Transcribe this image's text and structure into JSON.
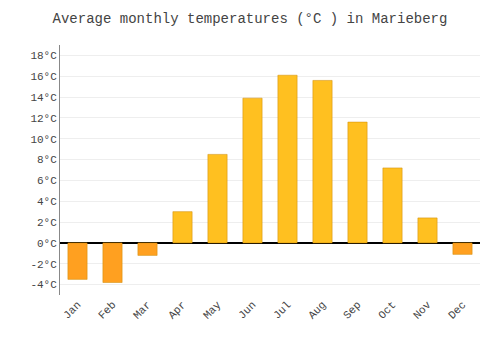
{
  "chart_data": {
    "type": "bar",
    "title": "Average monthly temperatures (°C ) in Marieberg",
    "categories": [
      "Jan",
      "Feb",
      "Mar",
      "Apr",
      "May",
      "Jun",
      "Jul",
      "Aug",
      "Sep",
      "Oct",
      "Nov",
      "Dec"
    ],
    "values": [
      -3.5,
      -3.8,
      -1.2,
      3.0,
      8.5,
      13.9,
      16.1,
      15.6,
      11.6,
      7.2,
      2.4,
      -1.1
    ],
    "colors": [
      "#FFA020",
      "#FFA020",
      "#FFA020",
      "#FFC020",
      "#FFC020",
      "#FFC020",
      "#FFC020",
      "#FFC020",
      "#FFC020",
      "#FFC020",
      "#FFC020",
      "#FFA020"
    ],
    "ylim": [
      -5,
      19
    ],
    "yticks": [
      {
        "value": -4,
        "label": "-4°C"
      },
      {
        "value": -2,
        "label": "-2°C"
      },
      {
        "value": 0,
        "label": "0°C"
      },
      {
        "value": 2,
        "label": "2°C"
      },
      {
        "value": 4,
        "label": "4°C"
      },
      {
        "value": 6,
        "label": "6°C"
      },
      {
        "value": 8,
        "label": "8°C"
      },
      {
        "value": 10,
        "label": "10°C"
      },
      {
        "value": 12,
        "label": "12°C"
      },
      {
        "value": 14,
        "label": "14°C"
      },
      {
        "value": 16,
        "label": "16°C"
      },
      {
        "value": 18,
        "label": "18°C"
      }
    ],
    "grid": true
  }
}
